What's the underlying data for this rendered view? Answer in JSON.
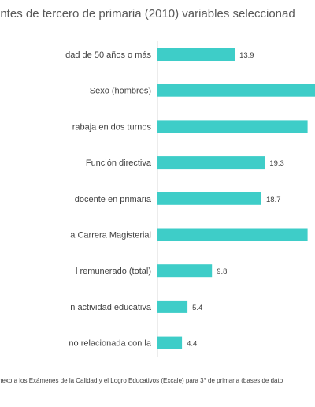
{
  "chart_data": {
    "type": "bar",
    "orientation": "horizontal",
    "title": "entes de tercero de primaria (2010) variables seleccionad",
    "source_note": "nexo a los Exámenes de la Calidad y el Logro Educativos (Excale) para 3° de primaria (bases de dato",
    "bar_color": "#3ECDC8",
    "categories": [
      "dad de 50 años o más",
      "Sexo (hombres)",
      "rabaja en dos turnos",
      "Función directiva",
      "docente en primaria",
      "a Carrera Magisterial",
      "l remunerado (total)",
      "n actividad educativa",
      "no relacionada con la"
    ],
    "values": [
      13.9,
      null,
      null,
      19.3,
      18.7,
      null,
      9.8,
      5.4,
      4.4
    ],
    "value_labels": [
      "13.9",
      "",
      "",
      "19.3",
      "18.7",
      "",
      "9.8",
      "5.4",
      "4.4"
    ],
    "estimated_values": [
      13.9,
      29,
      27,
      19.3,
      18.7,
      27,
      9.8,
      5.4,
      4.4
    ],
    "legend": "none",
    "grid": false
  }
}
